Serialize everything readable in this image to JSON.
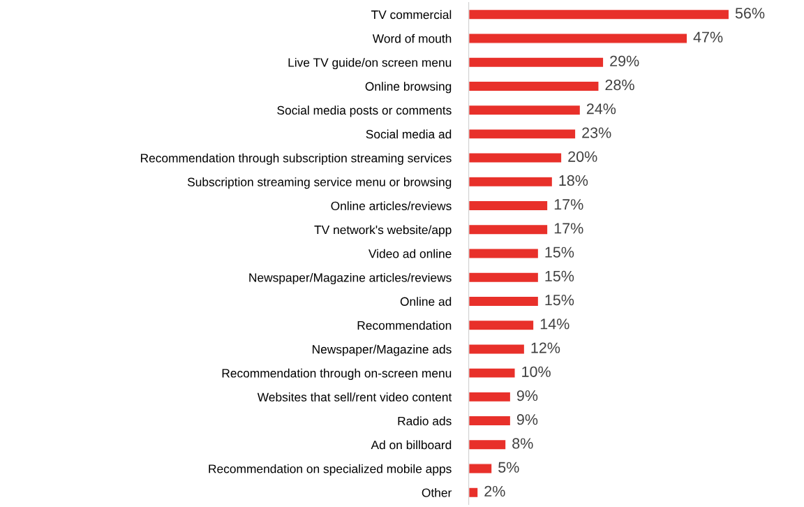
{
  "chart_data": {
    "type": "bar",
    "orientation": "horizontal",
    "tick_labels": "y",
    "grid": false,
    "legend": false,
    "categories": [
      "TV commercial",
      "Word of mouth",
      "Live TV guide/on screen menu",
      "Online browsing",
      "Social media posts or comments",
      "Social media ad",
      "Recommendation through subscription streaming services",
      "Subscription streaming service menu or browsing",
      "Online articles/reviews",
      "TV network's website/app",
      "Video ad online",
      "Newspaper/Magazine articles/reviews",
      "Online ad",
      "Recommendation",
      "Newspaper/Magazine ads",
      "Recommendation through on-screen menu",
      "Websites that sell/rent video content",
      "Radio ads",
      "Ad on billboard",
      "Recommendation on specialized mobile apps",
      "Other"
    ],
    "values": [
      56,
      47,
      29,
      28,
      24,
      23,
      20,
      18,
      17,
      17,
      15,
      15,
      15,
      14,
      12,
      10,
      9,
      9,
      8,
      5,
      2
    ],
    "value_labels": [
      "56%",
      "47%",
      "29%",
      "28%",
      "24%",
      "23%",
      "20%",
      "18%",
      "17%",
      "17%",
      "15%",
      "15%",
      "15%",
      "14%",
      "12%",
      "10%",
      "9%",
      "9%",
      "8%",
      "5%",
      "2%"
    ],
    "color": "#e8302a"
  }
}
